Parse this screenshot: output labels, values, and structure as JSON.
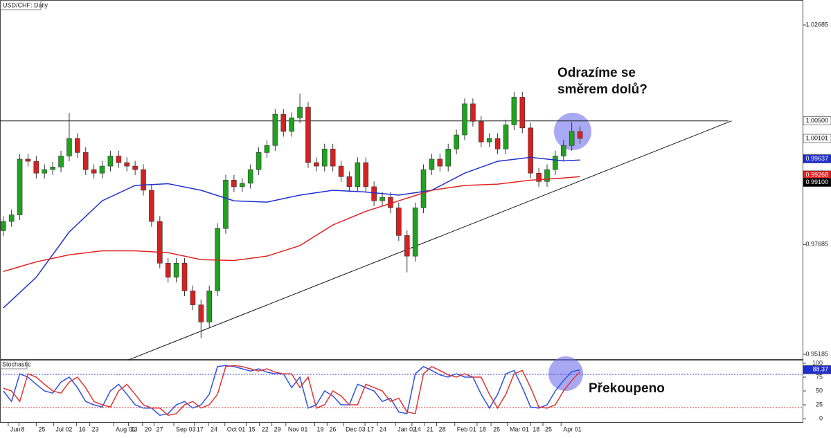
{
  "chart_data": [
    {
      "type": "candlestick",
      "title": "USD/CHF: Daily",
      "xlim": [
        -0.4,
        97.1
      ],
      "ylim": [
        0.95059,
        1.03253
      ],
      "yticks": [
        1.02685,
        0.97685,
        0.95185
      ],
      "up_color": "#1fa31f",
      "down_color": "#d42222",
      "open": [
        0.98,
        0.9821,
        0.9836,
        0.9963,
        0.9958,
        0.9931,
        0.9939,
        0.9945,
        0.997,
        1.001,
        0.9978,
        0.9939,
        0.9931,
        0.9947,
        0.997,
        0.9955,
        0.9947,
        0.9939,
        0.9892,
        0.9821,
        0.9726,
        0.9694,
        0.9726,
        0.9663,
        0.9631,
        0.9592,
        0.9663,
        0.9805,
        0.9915,
        0.99,
        0.9908,
        0.9939,
        0.9978,
        0.9994,
        1.0065,
        1.0026,
        1.0057,
        1.0081,
        0.9955,
        0.9947,
        0.9986,
        0.9947,
        0.9923,
        0.99,
        0.9955,
        0.99,
        0.9868,
        0.9876,
        0.9852,
        0.9789,
        0.9742,
        0.9852,
        0.9939,
        0.9963,
        0.9947,
        0.9986,
        1.0018,
        1.0089,
        1.0049,
        1.0002,
        1.001,
        0.9986,
        1.0041,
        1.0104,
        1.0034,
        0.9931,
        0.9912,
        0.9939,
        0.997,
        0.9994,
        1.0026
      ],
      "high": [
        0.9833,
        0.9848,
        0.9975,
        0.9975,
        0.997,
        0.9951,
        0.9957,
        0.9982,
        1.0068,
        1.0022,
        0.999,
        0.9951,
        0.9959,
        0.9982,
        0.9982,
        0.9967,
        0.9959,
        0.9951,
        0.9904,
        0.9833,
        0.9738,
        0.9738,
        0.9738,
        0.9675,
        0.9643,
        0.9675,
        0.9817,
        0.9927,
        0.9927,
        0.992,
        0.9951,
        0.999,
        1.0006,
        1.0077,
        1.0077,
        1.0069,
        1.0112,
        1.0093,
        0.9967,
        0.9998,
        0.9998,
        0.9959,
        0.9935,
        0.9967,
        0.9967,
        0.9912,
        0.9888,
        0.9888,
        0.9864,
        0.9801,
        0.9864,
        0.9951,
        0.9975,
        0.9975,
        0.9998,
        1.003,
        1.0101,
        1.0101,
        1.0061,
        1.0022,
        1.0022,
        1.0053,
        1.0116,
        1.0116,
        1.0046,
        0.9943,
        0.9951,
        0.9982,
        1.0006,
        1.0047,
        1.0038
      ],
      "low": [
        0.9788,
        0.9809,
        0.9824,
        0.9946,
        0.9919,
        0.9919,
        0.9927,
        0.9933,
        0.9958,
        0.9966,
        0.9927,
        0.9919,
        0.9919,
        0.9935,
        0.9943,
        0.9935,
        0.9927,
        0.988,
        0.9809,
        0.9714,
        0.9682,
        0.9682,
        0.9651,
        0.9619,
        0.9555,
        0.958,
        0.9651,
        0.9793,
        0.9888,
        0.9888,
        0.9896,
        0.9927,
        0.9966,
        0.9982,
        1.0014,
        1.0014,
        1.0045,
        0.9943,
        0.9935,
        0.9935,
        0.9935,
        0.9911,
        0.9888,
        0.9888,
        0.9888,
        0.9856,
        0.9856,
        0.984,
        0.9777,
        0.9705,
        0.973,
        0.984,
        0.9927,
        0.9935,
        0.9935,
        0.9974,
        1.0006,
        1.0037,
        0.999,
        0.999,
        0.9974,
        0.9974,
        1.0029,
        1.0022,
        0.9919,
        0.99,
        0.99,
        0.9927,
        0.9958,
        0.9982,
        0.9998
      ],
      "close": [
        0.9821,
        0.9836,
        0.9963,
        0.9958,
        0.9931,
        0.9939,
        0.9945,
        0.997,
        1.001,
        0.9978,
        0.9939,
        0.9931,
        0.9947,
        0.997,
        0.9955,
        0.9947,
        0.9939,
        0.9892,
        0.9821,
        0.9726,
        0.9694,
        0.9726,
        0.9663,
        0.9631,
        0.9592,
        0.9663,
        0.9805,
        0.9915,
        0.99,
        0.9908,
        0.9939,
        0.9978,
        0.9994,
        1.0065,
        1.0026,
        1.0057,
        1.0081,
        0.9955,
        0.9947,
        0.9986,
        0.9947,
        0.9923,
        0.99,
        0.9955,
        0.99,
        0.9868,
        0.9876,
        0.9852,
        0.9789,
        0.9742,
        0.9852,
        0.9939,
        0.9963,
        0.9947,
        0.9986,
        1.0018,
        1.0089,
        1.0049,
        1.0002,
        1.001,
        0.9986,
        1.0041,
        1.0104,
        1.0034,
        0.9931,
        0.9912,
        0.9939,
        0.997,
        0.9994,
        1.0026,
        1.001
      ],
      "lines": [
        {
          "color": "#1f2fd0",
          "x": [
            0,
            4,
            8,
            12,
            16,
            20,
            24,
            28,
            32,
            36,
            40,
            44,
            48,
            52,
            56,
            60,
            64,
            68,
            70
          ],
          "values": [
            0.9624,
            0.9694,
            0.9797,
            0.9868,
            0.9903,
            0.9907,
            0.9892,
            0.9868,
            0.9865,
            0.9881,
            0.9892,
            0.9888,
            0.9881,
            0.9892,
            0.9931,
            0.9958,
            0.9967,
            0.9959,
            0.9961
          ]
        },
        {
          "color": "#e02020",
          "x": [
            0,
            4,
            8,
            12,
            16,
            20,
            24,
            28,
            32,
            36,
            40,
            44,
            48,
            52,
            56,
            60,
            64,
            68,
            70
          ],
          "values": [
            0.9707,
            0.9729,
            0.9745,
            0.9754,
            0.9754,
            0.975,
            0.9734,
            0.9732,
            0.9742,
            0.9766,
            0.9813,
            0.9844,
            0.9868,
            0.9892,
            0.9903,
            0.9906,
            0.9915,
            0.992,
            0.9923
          ]
        }
      ],
      "hlines": [
        1.005
      ],
      "trendlines": [
        {
          "x": [
            15.1,
            88.4
          ],
          "y": [
            0.9505,
            1.005
          ]
        }
      ],
      "price_tags": [
        {
          "value": 1.005,
          "label": "1.00500",
          "color": "#ffffff",
          "text_color": "#000000"
        },
        {
          "value": 1.00101,
          "label": "1.00101",
          "color": "#ffffff",
          "text_color": "#000000"
        },
        {
          "value": 0.99637,
          "label": "0.99637",
          "color": "#1f2fd0",
          "text_color": "#ffffff"
        },
        {
          "value": 0.99268,
          "label": "0.99268",
          "color": "#e02020",
          "text_color": "#ffffff"
        },
        {
          "value": 0.991,
          "label": "0.99100",
          "color": "#000000",
          "text_color": "#ffffff"
        }
      ],
      "annotation": [
        "Odrazíme se",
        "směrem dolů?"
      ]
    },
    {
      "type": "line",
      "title": "Stochastic",
      "xlim": [
        -0.4,
        97.1
      ],
      "ylim": [
        -6.25,
        106.25
      ],
      "yticks": [
        0,
        25,
        50,
        75,
        100
      ],
      "xticks": [
        {
          "value": 0.6,
          "label": "Jun"
        },
        {
          "value": 1.9,
          "label": "8"
        },
        {
          "value": 4.0,
          "label": "25"
        },
        {
          "value": 6.1,
          "label": "Jul 02"
        },
        {
          "value": 8.9,
          "label": "16"
        },
        {
          "value": 10.5,
          "label": "23"
        },
        {
          "value": 13.4,
          "label": "Aug 01"
        },
        {
          "value": 15.2,
          "label": "13"
        },
        {
          "value": 16.9,
          "label": "20"
        },
        {
          "value": 18.3,
          "label": "27"
        },
        {
          "value": 20.7,
          "label": "Sep 03"
        },
        {
          "value": 23.2,
          "label": "17"
        },
        {
          "value": 24.9,
          "label": "24"
        },
        {
          "value": 26.9,
          "label": "Oct 01"
        },
        {
          "value": 29.5,
          "label": "15"
        },
        {
          "value": 31.1,
          "label": "22"
        },
        {
          "value": 32.6,
          "label": "29"
        },
        {
          "value": 34.3,
          "label": "Nov 01"
        },
        {
          "value": 37.8,
          "label": "19"
        },
        {
          "value": 39.3,
          "label": "26"
        },
        {
          "value": 41.3,
          "label": "Dec 03"
        },
        {
          "value": 43.9,
          "label": "17"
        },
        {
          "value": 45.4,
          "label": "24"
        },
        {
          "value": 47.6,
          "label": "Jan 02"
        },
        {
          "value": 49.6,
          "label": "14"
        },
        {
          "value": 51.1,
          "label": "21"
        },
        {
          "value": 52.6,
          "label": "28"
        },
        {
          "value": 54.8,
          "label": "Feb 01"
        },
        {
          "value": 57.5,
          "label": "18"
        },
        {
          "value": 59.2,
          "label": "25"
        },
        {
          "value": 61.2,
          "label": "Mar 01"
        },
        {
          "value": 64.0,
          "label": "18"
        },
        {
          "value": 65.5,
          "label": "25"
        },
        {
          "value": 67.7,
          "label": "Apr 01"
        }
      ],
      "levels": [
        {
          "value": 80,
          "color": "#3a3af0"
        },
        {
          "value": 20,
          "color": "#e03030"
        }
      ],
      "series": [
        {
          "color": "#2f4fe0",
          "values": [
            50,
            31,
            81,
            75,
            62,
            50,
            46,
            66,
            75,
            56,
            31,
            25,
            21,
            50,
            62,
            44,
            25,
            19,
            19,
            6,
            9,
            25,
            31,
            19,
            25,
            44,
            94,
            96,
            94,
            90,
            86,
            90,
            84,
            81,
            81,
            56,
            75,
            19,
            25,
            50,
            41,
            25,
            25,
            62,
            56,
            50,
            31,
            37,
            12,
            9,
            81,
            94,
            87,
            79,
            75,
            81,
            75,
            75,
            44,
            19,
            44,
            81,
            87,
            56,
            21,
            19,
            25,
            50,
            69,
            85,
            88
          ]
        },
        {
          "color": "#e03333",
          "values": [
            55,
            50,
            31,
            81,
            75,
            62,
            50,
            46,
            66,
            75,
            56,
            31,
            25,
            21,
            50,
            62,
            44,
            25,
            19,
            19,
            6,
            9,
            25,
            31,
            19,
            25,
            44,
            94,
            96,
            94,
            90,
            86,
            90,
            84,
            81,
            81,
            56,
            75,
            19,
            25,
            50,
            41,
            25,
            25,
            62,
            56,
            50,
            31,
            37,
            12,
            9,
            81,
            94,
            87,
            79,
            75,
            81,
            75,
            75,
            44,
            19,
            44,
            81,
            87,
            56,
            21,
            19,
            25,
            50,
            69,
            85
          ]
        }
      ],
      "tags": [
        {
          "value": 88.37,
          "label": "88.37",
          "color": "#1f2fd0",
          "text_color": "#ffffff"
        }
      ],
      "annotation": "Překoupeno"
    }
  ]
}
